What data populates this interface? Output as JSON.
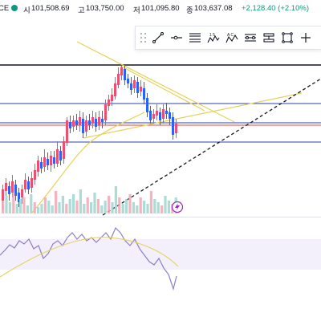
{
  "ohlc": {
    "symbol_tail": "CE",
    "open_label": "시",
    "open": "101,508.69",
    "high_label": "고",
    "high": "103,750.00",
    "low_label": "저",
    "low": "101,095.80",
    "close_label": "종",
    "close": "103,637.08",
    "change": "+2,128.40 (+2.10%)"
  },
  "toolbar": {
    "tools": [
      "trend-line",
      "horizontal-ray",
      "parallel-channel",
      "fib-retracement",
      "abc-pattern",
      "date-range",
      "price-range",
      "rectangle",
      "crosshair-cursor"
    ],
    "labels": [
      "",
      "",
      "",
      "",
      "",
      "",
      "",
      "",
      ""
    ]
  },
  "colors": {
    "up": "#089981",
    "candle_up": "#ef4f6f",
    "candle_down": "#2962ff",
    "line_yellow": "#e5d25a",
    "line_blue": "#2f3fb0",
    "line_red": "#d64545",
    "rsi": "#8e7fc4",
    "volume_up": "#9fd5cf",
    "volume_down": "#f3a6b5"
  }
}
